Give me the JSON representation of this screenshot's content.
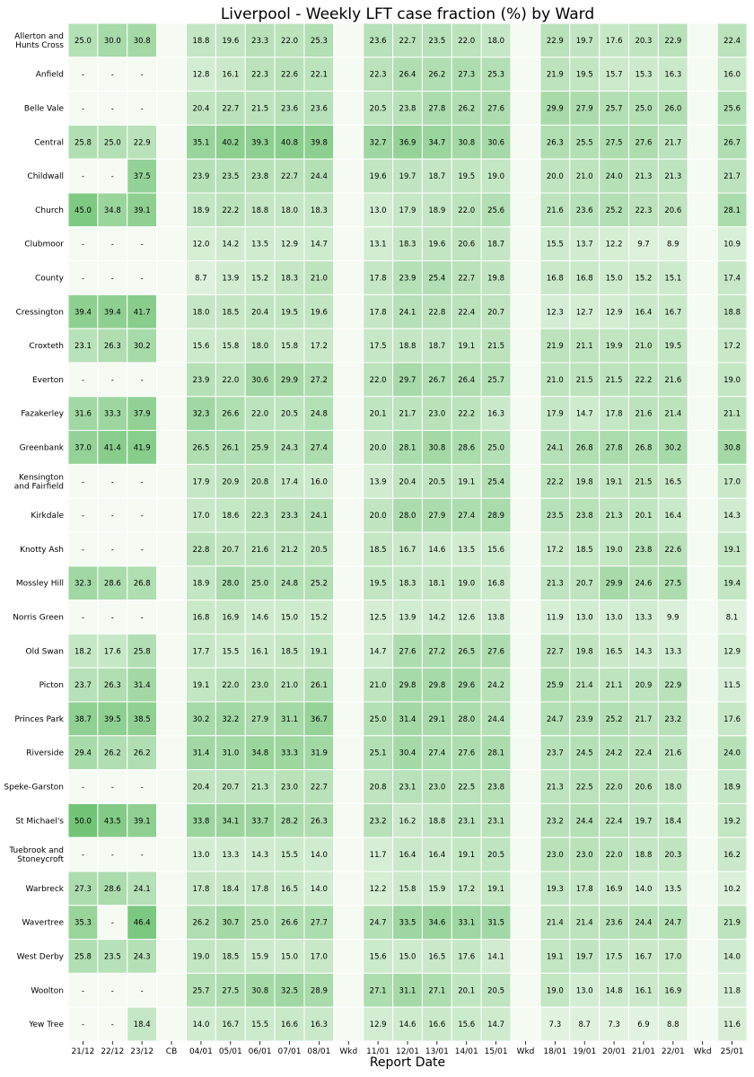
{
  "chart_data": {
    "type": "heatmap",
    "title": "Liverpool - Weekly LFT case fraction (%) by Ward",
    "xlabel": "Report Date",
    "ylabel": "",
    "x_labels": [
      "21/12",
      "22/12",
      "23/12",
      "CB",
      "04/01",
      "05/01",
      "06/01",
      "07/01",
      "08/01",
      "Wkd",
      "11/01",
      "12/01",
      "13/01",
      "14/01",
      "15/01",
      "Wkd",
      "18/01",
      "19/01",
      "20/01",
      "21/01",
      "22/01",
      "Wkd",
      "25/01"
    ],
    "y_labels": [
      "Allerton and\nHunts Cross",
      "Anfield",
      "Belle Vale",
      "Central",
      "Childwall",
      "Church",
      "Clubmoor",
      "County",
      "Cressington",
      "Croxteth",
      "Everton",
      "Fazakerley",
      "Greenbank",
      "Kensington\nand Fairfield",
      "Kirkdale",
      "Knotty Ash",
      "Mossley Hill",
      "Norris Green",
      "Old Swan",
      "Picton",
      "Princes Park",
      "Riverside",
      "Speke-Garston",
      "St Michael's",
      "Tuebrook and\nStoneycroft",
      "Warbreck",
      "Wavertree",
      "West Derby",
      "Woolton",
      "Yew Tree"
    ],
    "missing_label": "-",
    "color_low": "#f5fbf2",
    "color_high": "#72c477",
    "grid_color": "#ffffff",
    "values": [
      [
        25.0,
        30.0,
        30.8,
        "",
        18.8,
        19.6,
        23.3,
        22.0,
        25.3,
        "",
        23.6,
        22.7,
        23.5,
        22.0,
        18.0,
        "",
        22.9,
        19.7,
        17.6,
        20.3,
        22.9,
        "",
        22.4
      ],
      [
        "-",
        "-",
        "-",
        "",
        12.8,
        16.1,
        22.3,
        22.6,
        22.1,
        "",
        22.3,
        26.4,
        26.2,
        27.3,
        25.3,
        "",
        21.9,
        19.5,
        15.7,
        15.3,
        16.3,
        "",
        16.0
      ],
      [
        "-",
        "-",
        "-",
        "",
        20.4,
        22.7,
        21.5,
        23.6,
        23.6,
        "",
        20.5,
        23.8,
        27.8,
        26.2,
        27.6,
        "",
        29.9,
        27.9,
        25.7,
        25.0,
        26.0,
        "",
        25.6
      ],
      [
        25.8,
        25.0,
        22.9,
        "",
        35.1,
        40.2,
        39.3,
        40.8,
        39.8,
        "",
        32.7,
        36.9,
        34.7,
        30.8,
        30.6,
        "",
        26.3,
        25.5,
        27.5,
        27.6,
        21.7,
        "",
        26.7
      ],
      [
        "-",
        "-",
        37.5,
        "",
        23.9,
        23.5,
        23.8,
        22.7,
        24.4,
        "",
        19.6,
        19.7,
        18.7,
        19.5,
        19.0,
        "",
        20.0,
        21.0,
        24.0,
        21.3,
        21.3,
        "",
        21.7
      ],
      [
        45.0,
        34.8,
        39.1,
        "",
        18.9,
        22.2,
        18.8,
        18.0,
        18.3,
        "",
        13.0,
        17.9,
        18.9,
        22.0,
        25.6,
        "",
        21.6,
        23.6,
        25.2,
        22.3,
        20.6,
        "",
        28.1
      ],
      [
        "-",
        "-",
        "-",
        "",
        12.0,
        14.2,
        13.5,
        12.9,
        14.7,
        "",
        13.1,
        18.3,
        19.6,
        20.6,
        18.7,
        "",
        15.5,
        13.7,
        12.2,
        9.7,
        8.9,
        "",
        10.9
      ],
      [
        "-",
        "-",
        "-",
        "",
        8.7,
        13.9,
        15.2,
        18.3,
        21.0,
        "",
        17.8,
        23.9,
        25.4,
        22.7,
        19.8,
        "",
        16.8,
        16.8,
        15.0,
        15.2,
        15.1,
        "",
        17.4
      ],
      [
        39.4,
        39.4,
        41.7,
        "",
        18.0,
        18.5,
        20.4,
        19.5,
        19.6,
        "",
        17.8,
        24.1,
        22.8,
        22.4,
        20.7,
        "",
        12.3,
        12.7,
        12.9,
        16.4,
        16.7,
        "",
        18.8
      ],
      [
        23.1,
        26.3,
        30.2,
        "",
        15.6,
        15.8,
        18.0,
        15.8,
        17.2,
        "",
        17.5,
        18.8,
        18.7,
        19.1,
        21.5,
        "",
        21.9,
        21.1,
        19.9,
        21.0,
        19.5,
        "",
        17.2
      ],
      [
        "-",
        "-",
        "-",
        "",
        23.9,
        22.0,
        30.6,
        29.9,
        27.2,
        "",
        22.0,
        29.7,
        26.7,
        26.4,
        25.7,
        "",
        21.0,
        21.5,
        21.5,
        22.2,
        21.6,
        "",
        19.0
      ],
      [
        31.6,
        33.3,
        37.9,
        "",
        32.3,
        26.6,
        22.0,
        20.5,
        24.8,
        "",
        20.1,
        21.7,
        23.0,
        22.2,
        16.3,
        "",
        17.9,
        14.7,
        17.8,
        21.6,
        21.4,
        "",
        21.1
      ],
      [
        37.0,
        41.4,
        41.9,
        "",
        26.5,
        26.1,
        25.9,
        24.3,
        27.4,
        "",
        20.0,
        28.1,
        30.8,
        28.6,
        25.0,
        "",
        24.1,
        26.8,
        27.8,
        26.8,
        30.2,
        "",
        30.8
      ],
      [
        "-",
        "-",
        "-",
        "",
        17.9,
        20.9,
        20.8,
        17.4,
        16.0,
        "",
        13.9,
        20.4,
        20.5,
        19.1,
        25.4,
        "",
        22.2,
        19.8,
        19.1,
        21.5,
        16.5,
        "",
        17.0
      ],
      [
        "-",
        "-",
        "-",
        "",
        17.0,
        18.6,
        22.3,
        23.3,
        24.1,
        "",
        20.0,
        28.0,
        27.9,
        27.4,
        28.9,
        "",
        23.5,
        23.8,
        21.3,
        20.1,
        16.4,
        "",
        14.3
      ],
      [
        "-",
        "-",
        "-",
        "",
        22.8,
        20.7,
        21.6,
        21.2,
        20.5,
        "",
        18.5,
        16.7,
        14.6,
        13.5,
        15.6,
        "",
        17.2,
        18.5,
        19.0,
        23.8,
        22.6,
        "",
        19.1
      ],
      [
        32.3,
        28.6,
        26.8,
        "",
        18.9,
        28.0,
        25.0,
        24.8,
        25.2,
        "",
        19.5,
        18.3,
        18.1,
        19.0,
        16.8,
        "",
        21.3,
        20.7,
        29.9,
        24.6,
        27.5,
        "",
        19.4
      ],
      [
        "-",
        "-",
        "-",
        "",
        16.8,
        16.9,
        14.6,
        15.0,
        15.2,
        "",
        12.5,
        13.9,
        14.2,
        12.6,
        13.8,
        "",
        11.9,
        13.0,
        13.0,
        13.3,
        9.9,
        "",
        8.1
      ],
      [
        18.2,
        17.6,
        25.8,
        "",
        17.7,
        15.5,
        16.1,
        18.5,
        19.1,
        "",
        14.7,
        27.6,
        27.2,
        26.5,
        27.6,
        "",
        22.7,
        19.8,
        16.5,
        14.3,
        13.3,
        "",
        12.9
      ],
      [
        23.7,
        26.3,
        31.4,
        "",
        19.1,
        22.0,
        23.0,
        21.0,
        26.1,
        "",
        21.0,
        29.8,
        29.8,
        29.6,
        24.2,
        "",
        25.9,
        21.4,
        21.1,
        20.9,
        22.9,
        "",
        11.5
      ],
      [
        38.7,
        39.5,
        38.5,
        "",
        30.2,
        32.2,
        27.9,
        31.1,
        36.7,
        "",
        25.0,
        31.4,
        29.1,
        28.0,
        24.4,
        "",
        24.7,
        23.9,
        25.2,
        21.7,
        23.2,
        "",
        17.6
      ],
      [
        29.4,
        26.2,
        26.2,
        "",
        31.4,
        31.0,
        34.8,
        33.3,
        31.9,
        "",
        25.1,
        30.4,
        27.4,
        27.6,
        28.1,
        "",
        23.7,
        24.5,
        24.2,
        22.4,
        21.6,
        "",
        24.0
      ],
      [
        "-",
        "-",
        "-",
        "",
        20.4,
        20.7,
        21.3,
        23.0,
        22.7,
        "",
        20.8,
        23.1,
        23.0,
        22.5,
        23.8,
        "",
        21.3,
        22.5,
        22.0,
        20.6,
        18.0,
        "",
        18.9
      ],
      [
        50.0,
        43.5,
        39.1,
        "",
        33.8,
        34.1,
        33.7,
        28.2,
        26.3,
        "",
        23.2,
        16.2,
        18.8,
        23.1,
        23.1,
        "",
        23.2,
        24.4,
        22.4,
        19.7,
        18.4,
        "",
        19.2
      ],
      [
        "-",
        "-",
        "-",
        "",
        13.0,
        13.3,
        14.3,
        15.5,
        14.0,
        "",
        11.7,
        16.4,
        16.4,
        19.1,
        20.5,
        "",
        23.0,
        23.0,
        22.0,
        18.8,
        20.3,
        "",
        16.2
      ],
      [
        27.3,
        28.6,
        24.1,
        "",
        17.8,
        18.4,
        17.8,
        16.5,
        14.0,
        "",
        12.2,
        15.8,
        15.9,
        17.2,
        19.1,
        "",
        19.3,
        17.8,
        16.9,
        14.0,
        13.5,
        "",
        10.2
      ],
      [
        35.3,
        "-",
        46.4,
        "",
        26.2,
        30.7,
        25.0,
        26.6,
        27.7,
        "",
        24.7,
        33.5,
        34.6,
        33.1,
        31.5,
        "",
        21.4,
        21.4,
        23.6,
        24.4,
        24.7,
        "",
        21.9
      ],
      [
        25.8,
        23.5,
        24.3,
        "",
        19.0,
        18.5,
        15.9,
        15.0,
        17.0,
        "",
        15.6,
        15.0,
        16.5,
        17.6,
        14.1,
        "",
        19.1,
        19.7,
        17.5,
        16.7,
        17.0,
        "",
        14.0
      ],
      [
        "-",
        "-",
        "-",
        "",
        25.7,
        27.5,
        30.8,
        32.5,
        28.9,
        "",
        27.1,
        31.1,
        27.1,
        20.1,
        20.5,
        "",
        19.0,
        13.0,
        14.8,
        16.1,
        16.9,
        "",
        11.8
      ],
      [
        "-",
        "-",
        18.4,
        "",
        14.0,
        16.7,
        15.5,
        16.6,
        16.3,
        "",
        12.9,
        14.6,
        16.6,
        15.6,
        14.7,
        "",
        7.3,
        8.7,
        7.3,
        6.9,
        8.8,
        "",
        11.6
      ]
    ]
  }
}
